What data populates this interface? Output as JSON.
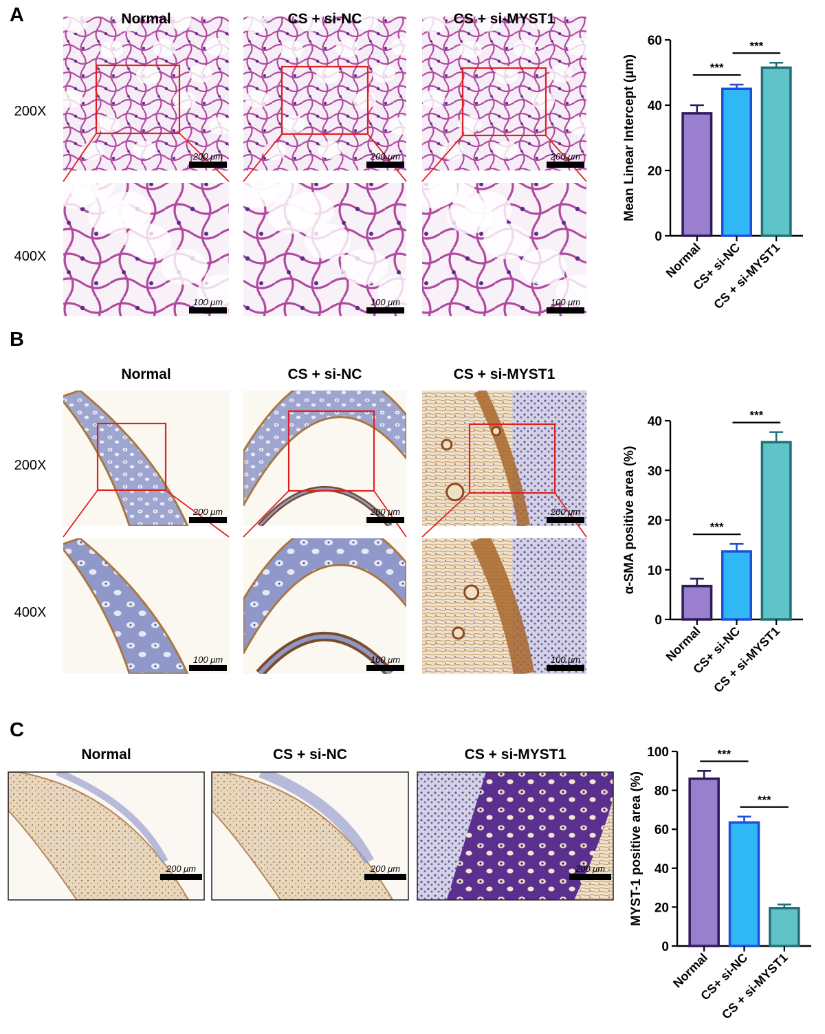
{
  "panels": [
    {
      "letter": "A",
      "stain": "he",
      "groups": [
        "Normal",
        "CS + si-NC",
        "CS + si-MYST1"
      ],
      "row_labels": [
        "200X",
        "400X"
      ],
      "scalebars": [
        "200 μm",
        "100 μm"
      ]
    },
    {
      "letter": "B",
      "stain": "ihc",
      "groups": [
        "Normal",
        "CS + si-NC",
        "CS + si-MYST1"
      ],
      "row_labels": [
        "200X",
        "400X"
      ],
      "scalebars": [
        "200 μm",
        "100 μm"
      ]
    },
    {
      "letter": "C",
      "stain": "ihc",
      "groups": [
        "Normal",
        "CS + si-NC",
        "CS + si-MYST1"
      ],
      "row_labels": [],
      "scalebars": [
        "200 μm"
      ]
    }
  ],
  "colors": {
    "normal": "#9b7fcf",
    "si_nc": "#2fb8f5",
    "si_myst1": "#5fc3c8",
    "normal_edge": "#2d1a5a",
    "si_nc_edge": "#1f4fd8",
    "si_myst1_edge": "#1f6f78",
    "zoom_box": "#e02020"
  },
  "chart_data": [
    {
      "type": "bar",
      "categories": [
        "Normal",
        "CS+ si-NC",
        "CS + si-MYST1"
      ],
      "values": [
        37.5,
        45,
        51.5
      ],
      "errors": [
        2.5,
        1.3,
        1.5
      ],
      "ylabel": "Mean Linear Intercept (μm)",
      "ylim": [
        0,
        60
      ],
      "yticks": [
        0,
        20,
        40,
        60
      ],
      "significance": [
        {
          "from": 0,
          "to": 1,
          "label": "***"
        },
        {
          "from": 1,
          "to": 2,
          "label": "***"
        }
      ]
    },
    {
      "type": "bar",
      "categories": [
        "Normal",
        "CS+ si-NC",
        "CS + si-MYST1"
      ],
      "values": [
        6.7,
        13.7,
        35.7
      ],
      "errors": [
        1.5,
        1.5,
        2.0
      ],
      "ylabel": "α-SMA positive area (%)",
      "ylim": [
        0,
        40
      ],
      "yticks": [
        0,
        10,
        20,
        30,
        40
      ],
      "significance": [
        {
          "from": 0,
          "to": 1,
          "label": "***"
        },
        {
          "from": 1,
          "to": 2,
          "label": "***"
        }
      ]
    },
    {
      "type": "bar",
      "categories": [
        "Normal",
        "CS+ si-NC",
        "CS + si-MYST1"
      ],
      "values": [
        86,
        63.5,
        19.5
      ],
      "errors": [
        4,
        3,
        1.8
      ],
      "ylabel": "MYST-1 positive area (%)",
      "ylim": [
        0,
        100
      ],
      "yticks": [
        0,
        20,
        40,
        60,
        80,
        100
      ],
      "significance": [
        {
          "from": 0,
          "to": 1,
          "label": "***"
        },
        {
          "from": 1,
          "to": 2,
          "label": "***"
        }
      ]
    }
  ]
}
